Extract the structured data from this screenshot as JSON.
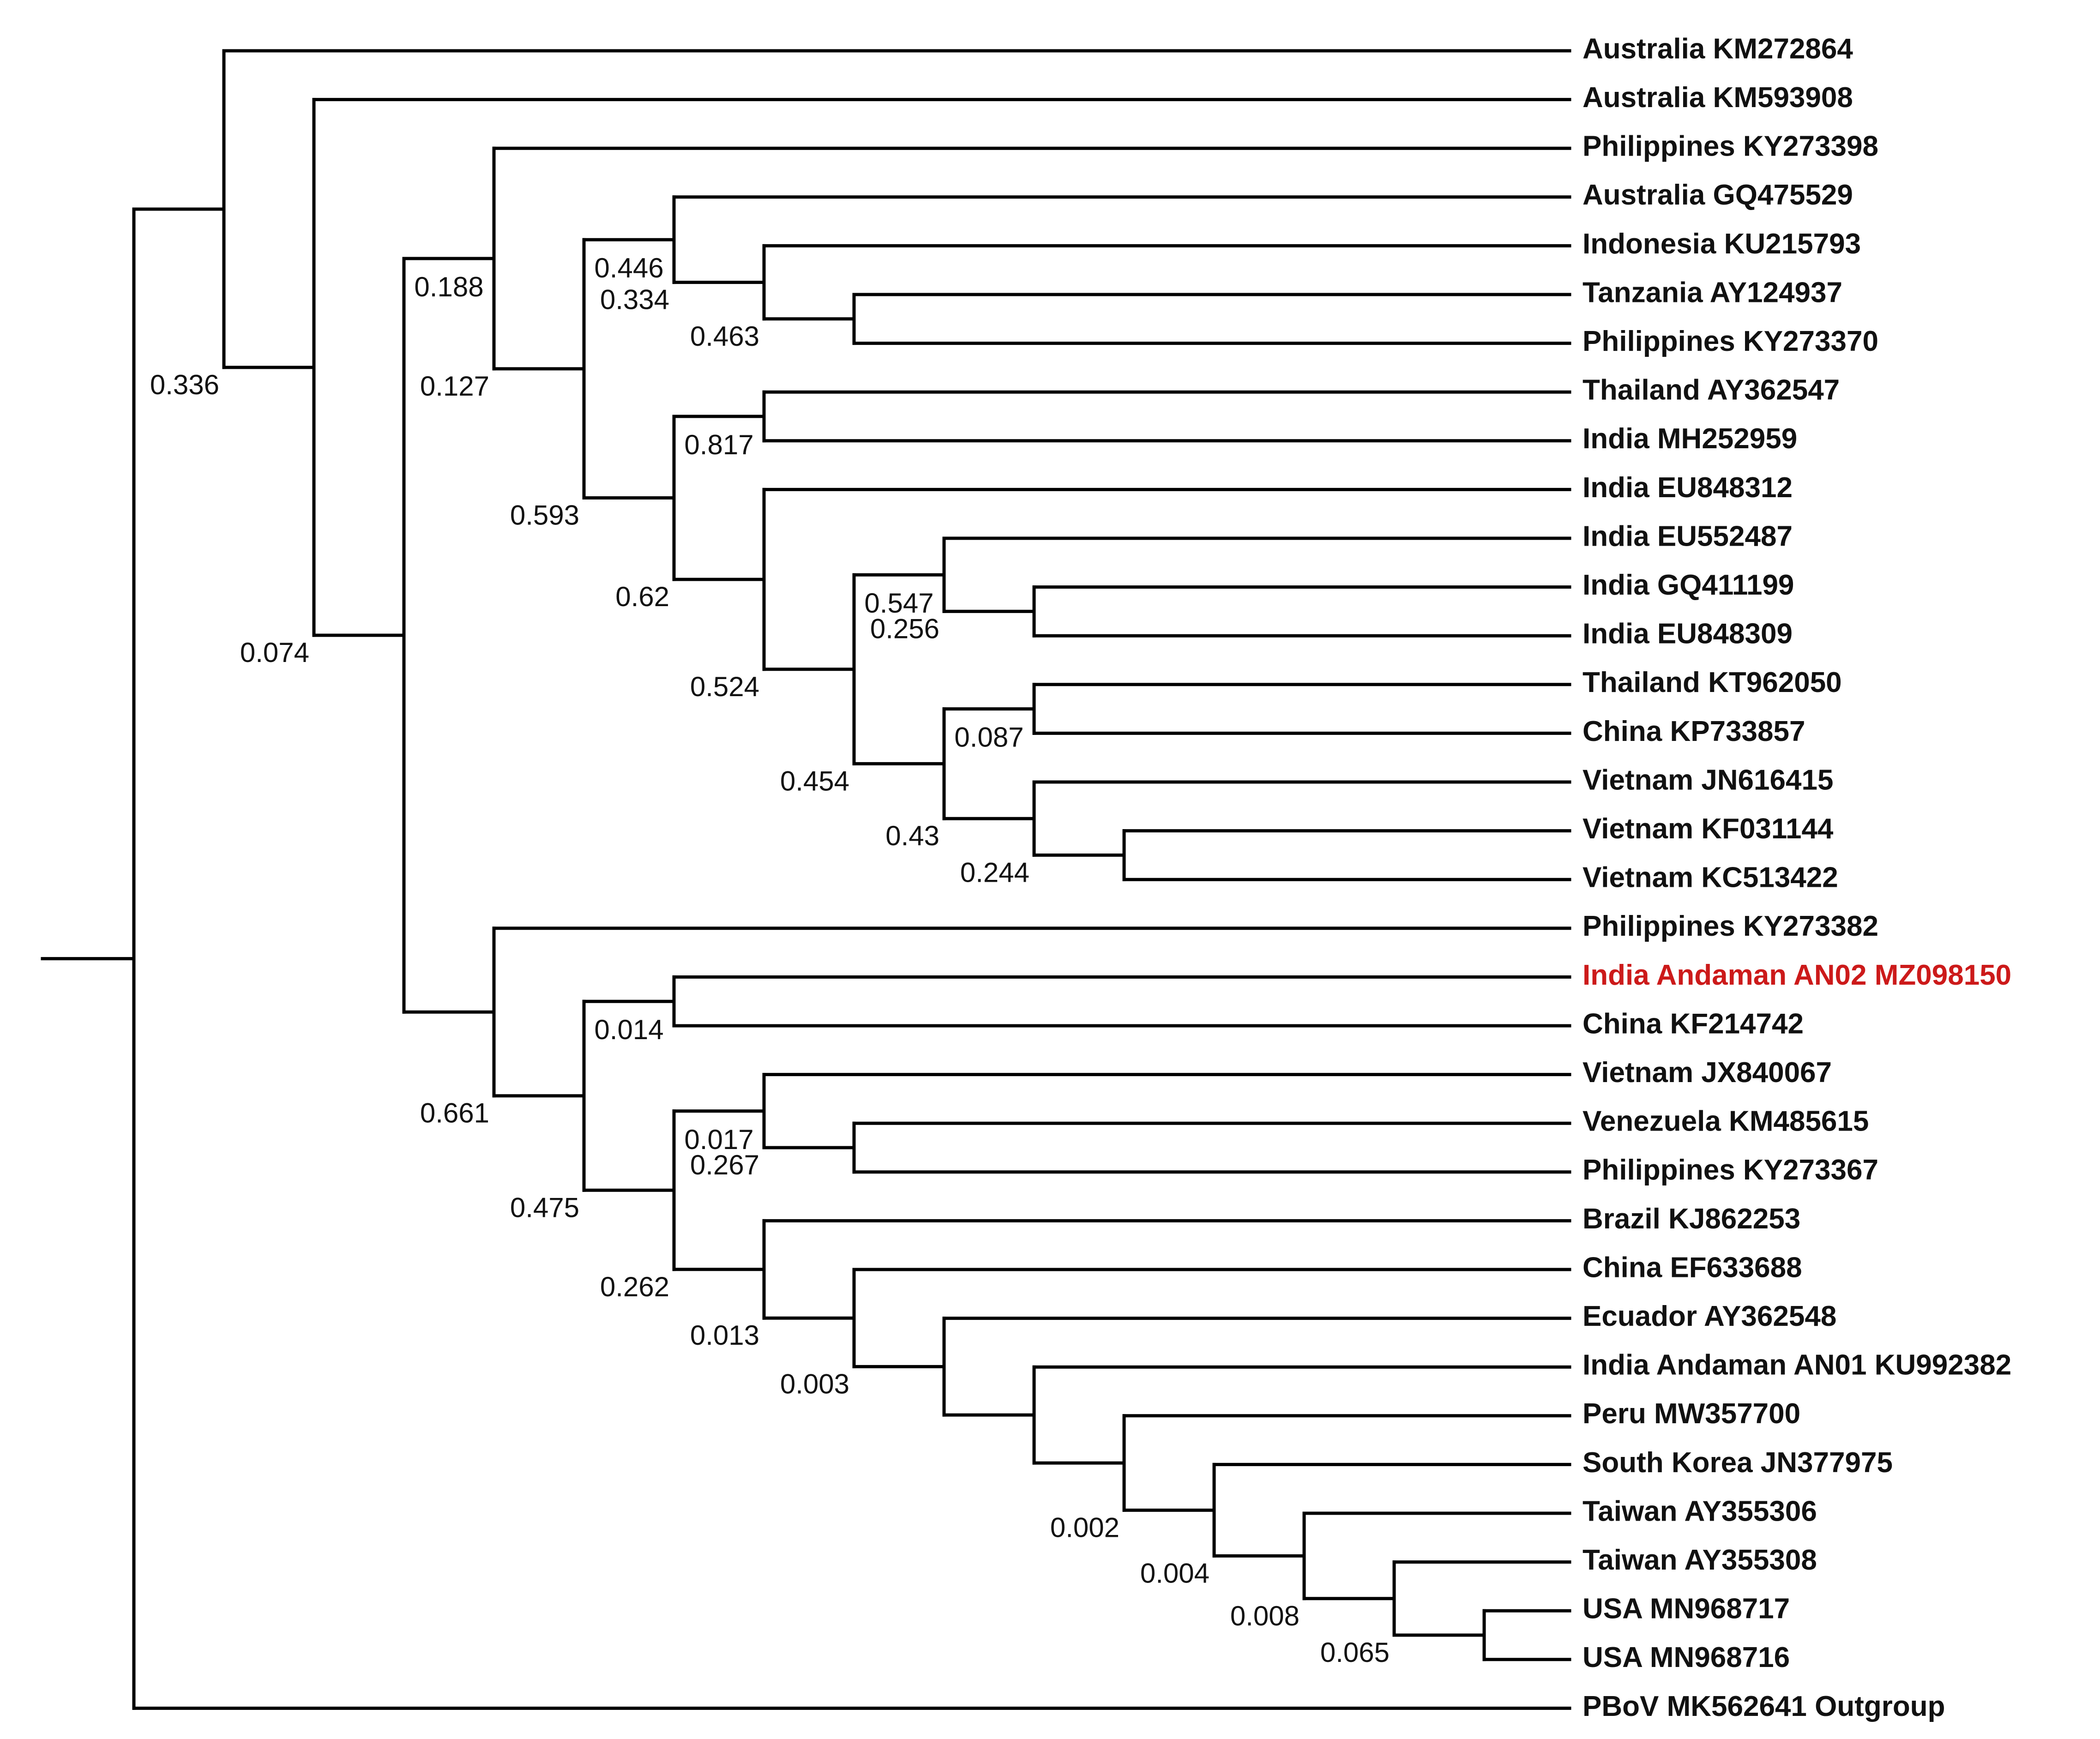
{
  "diagram": {
    "type": "phylogenetic-tree",
    "colors": {
      "branch": "#000000",
      "leaf": "#111111",
      "highlight": "#cc1a1a"
    }
  },
  "leaves": [
    {
      "id": "L0",
      "label": "Australia KM272864"
    },
    {
      "id": "L1",
      "label": "Australia KM593908"
    },
    {
      "id": "L2",
      "label": "Philippines KY273398"
    },
    {
      "id": "L3",
      "label": "Australia GQ475529"
    },
    {
      "id": "L4",
      "label": "Indonesia KU215793"
    },
    {
      "id": "L5",
      "label": "Tanzania AY124937"
    },
    {
      "id": "L6",
      "label": "Philippines KY273370"
    },
    {
      "id": "L7",
      "label": "Thailand AY362547"
    },
    {
      "id": "L8",
      "label": "India MH252959"
    },
    {
      "id": "L9",
      "label": "India EU848312"
    },
    {
      "id": "L10",
      "label": "India EU552487"
    },
    {
      "id": "L11",
      "label": "India GQ411199"
    },
    {
      "id": "L12",
      "label": "India EU848309"
    },
    {
      "id": "L13",
      "label": "Thailand KT962050"
    },
    {
      "id": "L14",
      "label": "China KP733857"
    },
    {
      "id": "L15",
      "label": "Vietnam JN616415"
    },
    {
      "id": "L16",
      "label": "Vietnam KF031144"
    },
    {
      "id": "L17",
      "label": "Vietnam KC513422"
    },
    {
      "id": "L18",
      "label": "Philippines KY273382"
    },
    {
      "id": "L19",
      "label": "India Andaman AN02 MZ098150",
      "highlight": true
    },
    {
      "id": "L20",
      "label": "China KF214742"
    },
    {
      "id": "L21",
      "label": "Vietnam JX840067"
    },
    {
      "id": "L22",
      "label": "Venezuela KM485615"
    },
    {
      "id": "L23",
      "label": "Philippines KY273367"
    },
    {
      "id": "L24",
      "label": "Brazil KJ862253"
    },
    {
      "id": "L25",
      "label": "China EF633688"
    },
    {
      "id": "L26",
      "label": "Ecuador AY362548"
    },
    {
      "id": "L27",
      "label": "India Andaman AN01 KU992382"
    },
    {
      "id": "L28",
      "label": "Peru MW357700"
    },
    {
      "id": "L29",
      "label": "South Korea JN377975"
    },
    {
      "id": "L30",
      "label": "Taiwan AY355306"
    },
    {
      "id": "L31",
      "label": "Taiwan AY355308"
    },
    {
      "id": "L32",
      "label": "USA MN968717"
    },
    {
      "id": "L33",
      "label": "USA MN968716"
    },
    {
      "id": "L34",
      "label": "PBoV MK562641 Outgroup"
    }
  ],
  "nodes": [
    {
      "id": "root",
      "children": [
        "nA",
        "L34"
      ]
    },
    {
      "id": "nA",
      "support": "0.336",
      "children": [
        "L0",
        "nB"
      ]
    },
    {
      "id": "nB",
      "support": "0.074",
      "children": [
        "L1",
        "nC"
      ]
    },
    {
      "id": "nC",
      "children": [
        "nD",
        "nS"
      ]
    },
    {
      "id": "nD",
      "support": "0.127",
      "children": [
        "L2",
        "nE"
      ]
    },
    {
      "id": "nE",
      "support": "0.593",
      "children": [
        "nF",
        "nI"
      ]
    },
    {
      "id": "nF",
      "support": "0.334",
      "children": [
        "L3",
        "nG"
      ]
    },
    {
      "id": "nG",
      "support": "0.463",
      "children": [
        "L4",
        "nH"
      ]
    },
    {
      "id": "nH",
      "children": [
        "L5",
        "L6"
      ]
    },
    {
      "id": "nI",
      "support": "0.62",
      "children": [
        "nJ",
        "nK"
      ]
    },
    {
      "id": "nJ",
      "children": [
        "L7",
        "L8"
      ]
    },
    {
      "id": "nK",
      "support": "0.524",
      "children": [
        "L9",
        "nL"
      ]
    },
    {
      "id": "nL",
      "support": "0.454",
      "children": [
        "nM",
        "nO"
      ]
    },
    {
      "id": "nM",
      "support": "0.256",
      "children": [
        "L10",
        "nN"
      ]
    },
    {
      "id": "nN",
      "children": [
        "L11",
        "L12"
      ]
    },
    {
      "id": "nO",
      "support": "0.43",
      "children": [
        "nP",
        "nQ"
      ]
    },
    {
      "id": "nP",
      "children": [
        "L13",
        "L14"
      ]
    },
    {
      "id": "nQ",
      "support": "0.244",
      "children": [
        "L15",
        "nR"
      ]
    },
    {
      "id": "nR",
      "children": [
        "L16",
        "L17"
      ]
    },
    {
      "id": "nS",
      "support": "0.661",
      "children": [
        "L18",
        "nT"
      ]
    },
    {
      "id": "nT",
      "support": "0.475",
      "children": [
        "nU",
        "nV"
      ]
    },
    {
      "id": "nU",
      "children": [
        "L19",
        "L20"
      ]
    },
    {
      "id": "nV",
      "support": "0.262",
      "children": [
        "nW",
        "nY"
      ]
    },
    {
      "id": "nW",
      "support": "0.267",
      "children": [
        "L21",
        "nX"
      ]
    },
    {
      "id": "nX",
      "children": [
        "L22",
        "L23"
      ]
    },
    {
      "id": "nY",
      "support": "0.013",
      "children": [
        "L24",
        "nZ"
      ]
    },
    {
      "id": "nZ",
      "support": "0.003",
      "children": [
        "L25",
        "n1"
      ]
    },
    {
      "id": "n1",
      "children": [
        "L26",
        "n2"
      ]
    },
    {
      "id": "n2",
      "children": [
        "L27",
        "n3"
      ]
    },
    {
      "id": "n3",
      "support": "0.002",
      "children": [
        "L28",
        "n4"
      ]
    },
    {
      "id": "n4",
      "support": "0.004",
      "children": [
        "L29",
        "n5"
      ]
    },
    {
      "id": "n5",
      "support": "0.008",
      "children": [
        "L30",
        "n6"
      ]
    },
    {
      "id": "n6",
      "support": "0.065",
      "children": [
        "L31",
        "n7"
      ]
    },
    {
      "id": "n7",
      "children": [
        "L32",
        "L33"
      ]
    }
  ],
  "branch_labels": [
    {
      "node": "nD",
      "value": "0.188"
    },
    {
      "node": "nF",
      "value": "0.446"
    },
    {
      "node": "nJ",
      "value": "0.817"
    },
    {
      "node": "nM",
      "value": "0.547"
    },
    {
      "node": "nP",
      "value": "0.087"
    },
    {
      "node": "nU",
      "value": "0.014"
    },
    {
      "node": "nW",
      "value": "0.017"
    }
  ]
}
